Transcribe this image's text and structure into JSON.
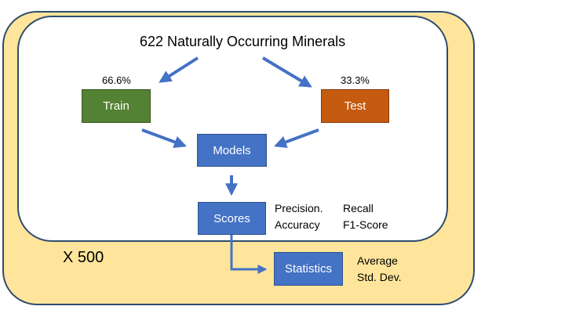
{
  "diagram": {
    "title": "622 Naturally Occurring Minerals",
    "train": {
      "label": "Train",
      "percent": "66.6%"
    },
    "test": {
      "label": "Test",
      "percent": "33.3%"
    },
    "models": {
      "label": "Models"
    },
    "scores": {
      "label": "Scores",
      "metrics": [
        "Precision.",
        "Recall",
        "Accuracy",
        "F1-Score"
      ]
    },
    "statistics": {
      "label": "Statistics",
      "outputs": [
        "Average",
        "Std. Dev."
      ]
    },
    "repeat_label": "X 500"
  },
  "colors": {
    "outer_fill": "#FEE59B",
    "border": "#2F4C6E",
    "blue_box": "#4472C4",
    "train_box": "#548235",
    "test_box": "#C55A11",
    "arrow": "#4472C4"
  }
}
